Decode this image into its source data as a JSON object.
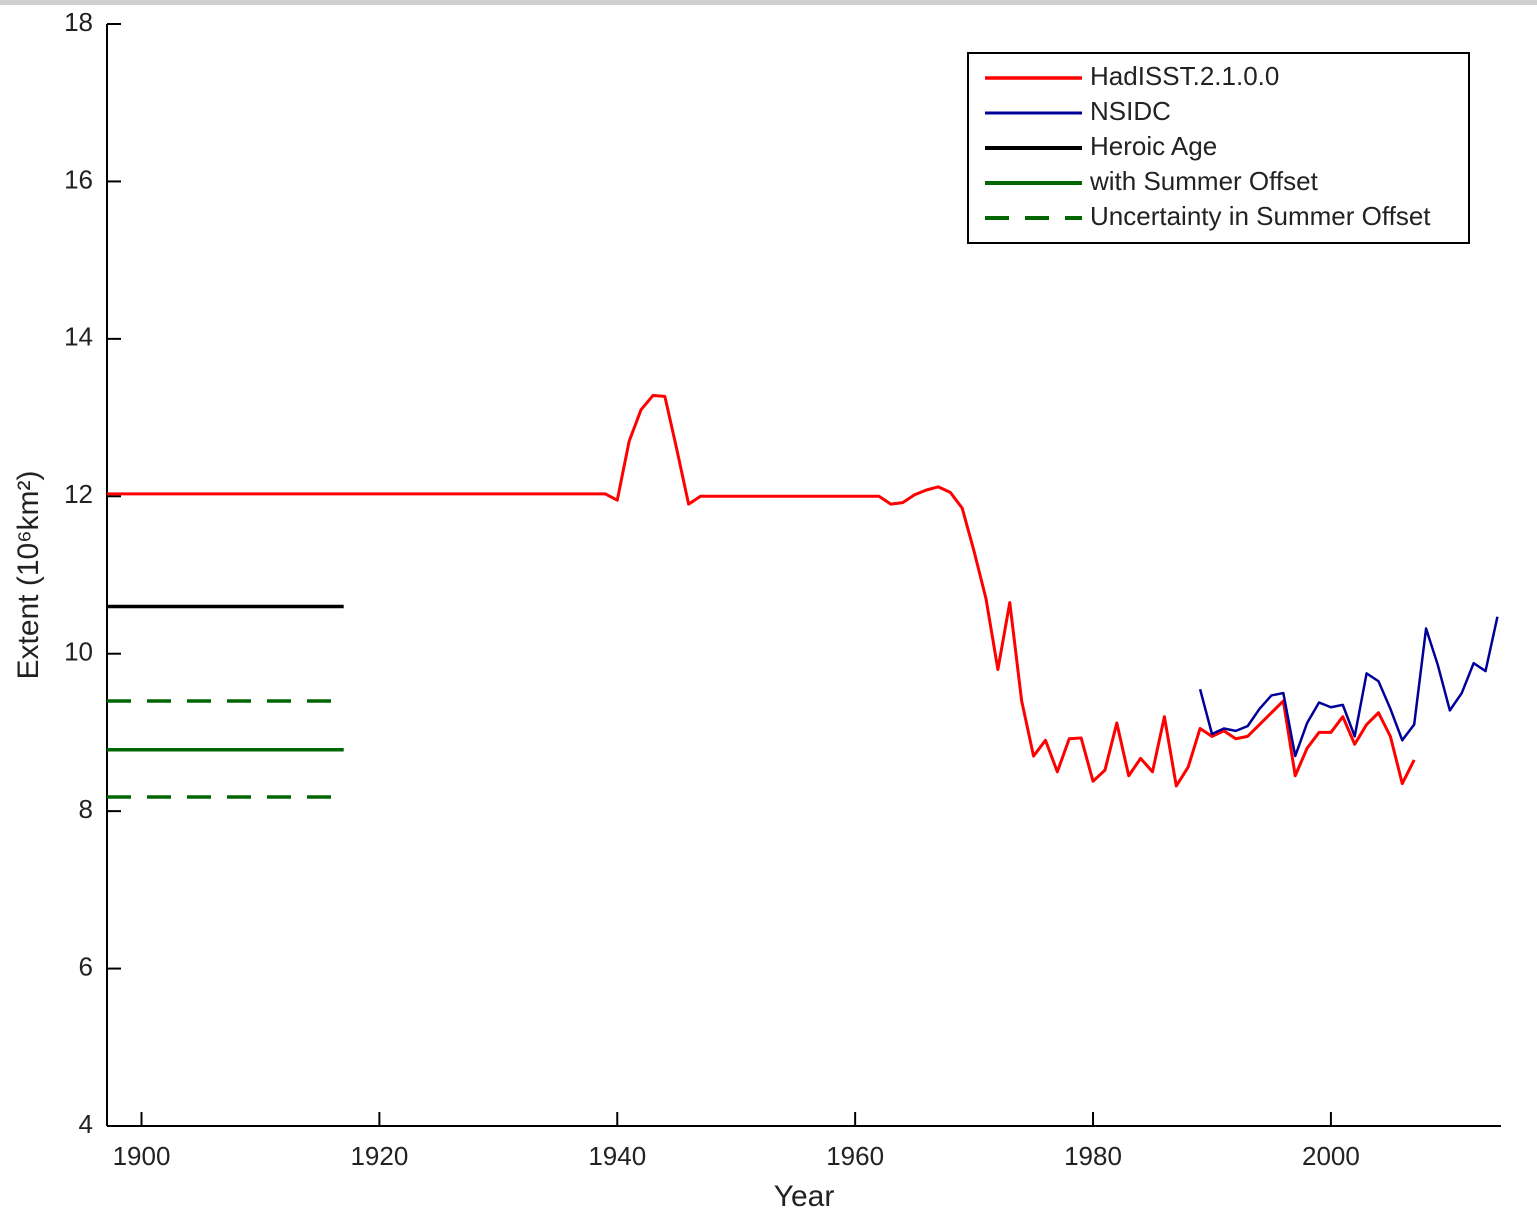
{
  "chart_data": {
    "type": "line",
    "x_label": "Year",
    "y_label": "Extent (10⁶km²)",
    "xlim": [
      1897.1,
      2014.3
    ],
    "ylim": [
      4,
      18
    ],
    "xticks": [
      1900,
      1920,
      1940,
      1960,
      1980,
      2000
    ],
    "yticks": [
      4,
      6,
      8,
      10,
      12,
      14,
      16,
      18
    ],
    "grid": false,
    "legend": "upper right",
    "series": [
      {
        "name": "HadISST.2.1.0.0",
        "color": "#ff0000",
        "linestyle": "solid",
        "linewidth": 3,
        "x": [
          1897.1,
          1939,
          1940,
          1941,
          1942,
          1943,
          1944,
          1945,
          1946,
          1947,
          1962,
          1963,
          1964,
          1965,
          1966,
          1967,
          1968,
          1969,
          1970,
          1971,
          1972,
          1973,
          1974,
          1975,
          1976,
          1977,
          1978,
          1979,
          1980,
          1981,
          1982,
          1983,
          1984,
          1985,
          1986,
          1987,
          1988,
          1989,
          1990,
          1991,
          1992,
          1993,
          1994,
          1995,
          1996,
          1997,
          1998,
          1999,
          2000,
          2001,
          2002,
          2003,
          2004,
          2005,
          2006,
          2007
        ],
        "values": [
          12.03,
          12.03,
          11.95,
          12.7,
          13.1,
          13.28,
          13.27,
          12.6,
          11.9,
          12.0,
          12.0,
          11.9,
          11.92,
          12.02,
          12.08,
          12.12,
          12.05,
          11.85,
          11.3,
          10.7,
          9.8,
          10.65,
          9.4,
          8.7,
          8.9,
          8.5,
          8.92,
          8.93,
          8.38,
          8.52,
          9.12,
          8.45,
          8.67,
          8.5,
          9.2,
          8.32,
          8.56,
          9.05,
          8.95,
          9.02,
          8.92,
          8.95,
          9.1,
          9.25,
          9.4,
          8.45,
          8.8,
          9.0,
          9.0,
          9.2,
          8.85,
          9.1,
          9.25,
          8.95,
          8.35,
          8.65
        ]
      },
      {
        "name": "NSIDC",
        "color": "#000099",
        "linestyle": "solid",
        "linewidth": 2.5,
        "x": [
          1989,
          1990,
          1991,
          1992,
          1993,
          1994,
          1995,
          1996,
          1997,
          1998,
          1999,
          2000,
          2001,
          2002,
          2003,
          2004,
          2005,
          2006,
          2007,
          2008,
          2009,
          2010,
          2011,
          2012,
          2013,
          2014
        ],
        "values": [
          9.55,
          8.98,
          9.05,
          9.02,
          9.08,
          9.3,
          9.47,
          9.5,
          8.7,
          9.12,
          9.38,
          9.32,
          9.35,
          8.95,
          9.75,
          9.65,
          9.3,
          8.9,
          9.1,
          10.32,
          9.85,
          9.28,
          9.5,
          9.88,
          9.78,
          10.47
        ]
      },
      {
        "name": "Heroic Age",
        "color": "#000000",
        "linestyle": "solid",
        "linewidth": 3.5,
        "x": [
          1897.1,
          1917
        ],
        "values": [
          10.6,
          10.6
        ]
      },
      {
        "name": "with Summer Offset",
        "color": "#006600",
        "linestyle": "solid",
        "linewidth": 3.5,
        "x": [
          1897.1,
          1917
        ],
        "values": [
          8.78,
          8.78
        ]
      },
      {
        "name": "Uncertainty in Summer Offset",
        "color": "#006600",
        "linestyle": "dashed",
        "linewidth": 3.5,
        "x": [
          1897.1,
          1917,
          1917,
          1897.1,
          1917
        ],
        "values": [
          9.4,
          9.4,
          null,
          8.18,
          8.18
        ]
      }
    ]
  }
}
